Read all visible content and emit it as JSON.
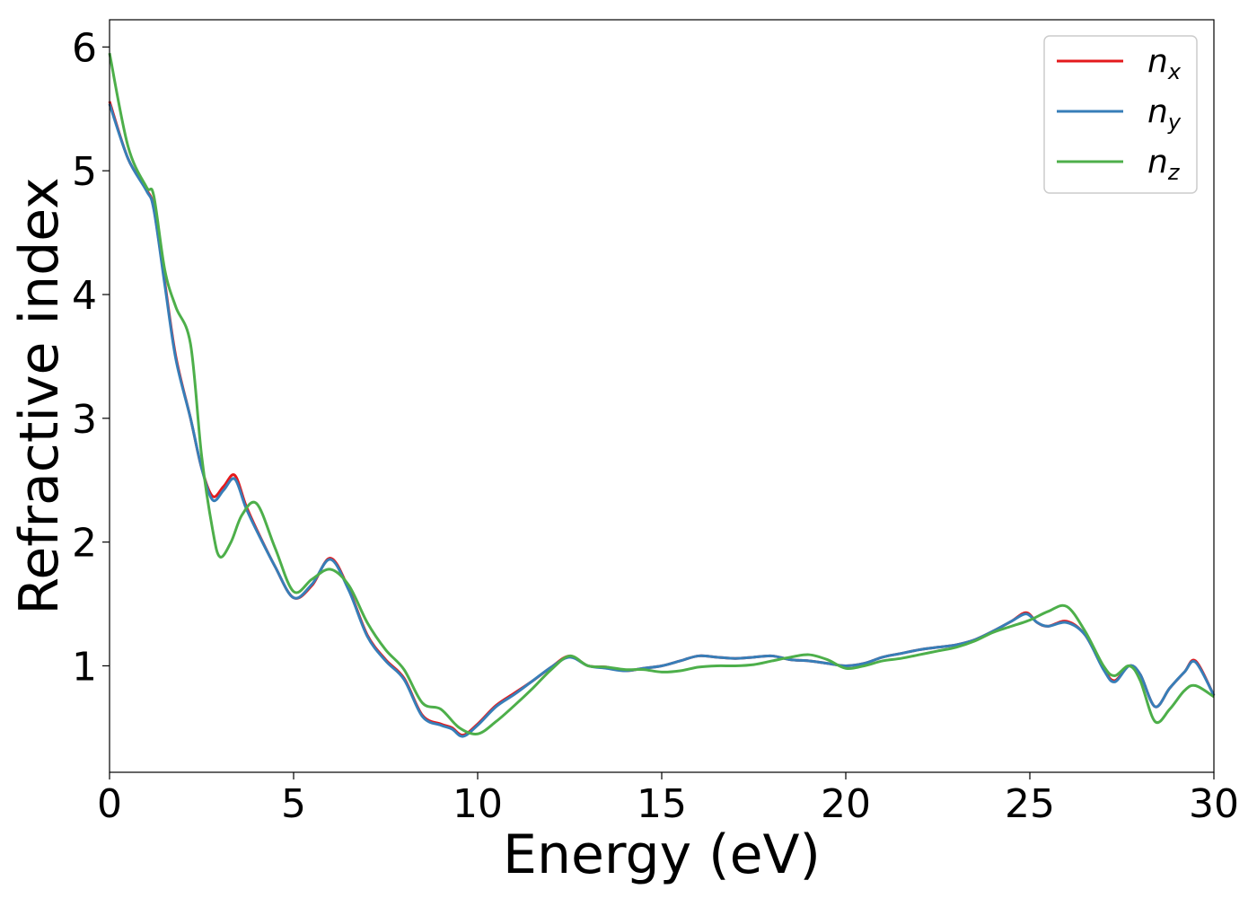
{
  "chart_data": {
    "type": "line",
    "xlabel": "Energy (eV)",
    "ylabel": "Refractive index",
    "xlim": [
      0,
      30
    ],
    "ylim": [
      0.14,
      6.22
    ],
    "xticks": [
      0,
      5,
      10,
      15,
      20,
      25,
      30
    ],
    "yticks": [
      1,
      2,
      3,
      4,
      5,
      6
    ],
    "grid": false,
    "legend_position": "top-right",
    "series": [
      {
        "name": "n",
        "sub": "x",
        "color": "#e41a1c",
        "x": [
          0,
          0.5,
          1,
          1.2,
          1.5,
          1.8,
          2.2,
          2.5,
          2.8,
          3.1,
          3.4,
          3.7,
          4,
          4.5,
          5,
          5.5,
          6,
          6.5,
          7,
          7.5,
          8,
          8.5,
          9,
          9.3,
          9.6,
          10,
          10.5,
          11,
          11.5,
          12,
          12.5,
          13,
          13.5,
          14,
          14.5,
          15,
          15.5,
          16,
          16.5,
          17,
          17.5,
          18,
          18.5,
          19,
          19.5,
          20,
          20.5,
          21,
          21.5,
          22,
          22.5,
          23,
          23.5,
          24,
          24.5,
          24.9,
          25.2,
          25.5,
          26,
          26.5,
          27,
          27.3,
          27.7,
          28,
          28.4,
          28.8,
          29.2,
          29.5,
          30
        ],
        "y": [
          5.56,
          5.1,
          4.85,
          4.7,
          4.1,
          3.5,
          3.0,
          2.6,
          2.37,
          2.45,
          2.54,
          2.3,
          2.1,
          1.8,
          1.55,
          1.65,
          1.87,
          1.62,
          1.25,
          1.05,
          0.9,
          0.6,
          0.53,
          0.5,
          0.44,
          0.53,
          0.68,
          0.78,
          0.88,
          0.99,
          1.08,
          1.0,
          0.99,
          0.96,
          0.98,
          1.0,
          1.04,
          1.08,
          1.07,
          1.06,
          1.07,
          1.08,
          1.05,
          1.04,
          1.02,
          1.0,
          1.02,
          1.07,
          1.1,
          1.13,
          1.15,
          1.17,
          1.21,
          1.28,
          1.36,
          1.43,
          1.35,
          1.32,
          1.36,
          1.25,
          0.98,
          0.88,
          1.0,
          0.93,
          0.67,
          0.82,
          0.95,
          1.04,
          0.76
        ]
      },
      {
        "name": "n",
        "sub": "y",
        "color": "#377eb8",
        "x": [
          0,
          0.5,
          1,
          1.2,
          1.5,
          1.8,
          2.2,
          2.5,
          2.8,
          3.1,
          3.4,
          3.7,
          4,
          4.5,
          5,
          5.5,
          6,
          6.5,
          7,
          7.5,
          8,
          8.5,
          9,
          9.3,
          9.6,
          10,
          10.5,
          11,
          11.5,
          12,
          12.5,
          13,
          13.5,
          14,
          14.5,
          15,
          15.5,
          16,
          16.5,
          17,
          17.5,
          18,
          18.5,
          19,
          19.5,
          20,
          20.5,
          21,
          21.5,
          22,
          22.5,
          23,
          23.5,
          24,
          24.5,
          24.9,
          25.2,
          25.5,
          26,
          26.5,
          27,
          27.3,
          27.7,
          28,
          28.4,
          28.8,
          29.2,
          29.5,
          30
        ],
        "y": [
          5.54,
          5.1,
          4.84,
          4.69,
          4.08,
          3.48,
          3.0,
          2.6,
          2.34,
          2.42,
          2.51,
          2.28,
          2.09,
          1.8,
          1.55,
          1.66,
          1.86,
          1.61,
          1.24,
          1.04,
          0.89,
          0.59,
          0.52,
          0.49,
          0.43,
          0.52,
          0.67,
          0.77,
          0.88,
          0.99,
          1.07,
          1.0,
          0.98,
          0.96,
          0.98,
          1.0,
          1.04,
          1.08,
          1.07,
          1.06,
          1.07,
          1.08,
          1.05,
          1.04,
          1.02,
          1.0,
          1.02,
          1.07,
          1.1,
          1.13,
          1.15,
          1.17,
          1.21,
          1.28,
          1.36,
          1.42,
          1.35,
          1.32,
          1.35,
          1.25,
          0.97,
          0.87,
          1.0,
          0.93,
          0.67,
          0.82,
          0.95,
          1.03,
          0.76
        ]
      },
      {
        "name": "n",
        "sub": "z",
        "color": "#4daf4a",
        "x": [
          0,
          0.5,
          1,
          1.2,
          1.5,
          1.8,
          2.2,
          2.5,
          2.8,
          3.0,
          3.3,
          3.6,
          4.0,
          4.5,
          5.0,
          5.5,
          6.0,
          6.5,
          7.0,
          7.5,
          8.0,
          8.5,
          9.0,
          9.5,
          10.0,
          10.5,
          11.0,
          11.5,
          12.0,
          12.5,
          13.0,
          13.5,
          14.0,
          14.5,
          15.0,
          15.5,
          16.0,
          16.5,
          17.0,
          17.5,
          18.0,
          18.5,
          19.0,
          19.5,
          20.0,
          20.5,
          21.0,
          21.5,
          22.0,
          22.5,
          23.0,
          23.5,
          24.0,
          24.5,
          25.0,
          25.5,
          26.0,
          26.5,
          27.0,
          27.3,
          27.7,
          28.0,
          28.4,
          28.8,
          29.2,
          29.5,
          30.0
        ],
        "y": [
          5.95,
          5.2,
          4.87,
          4.8,
          4.2,
          3.9,
          3.6,
          2.7,
          2.1,
          1.88,
          2.0,
          2.22,
          2.31,
          1.95,
          1.6,
          1.7,
          1.78,
          1.65,
          1.35,
          1.13,
          0.97,
          0.7,
          0.65,
          0.5,
          0.45,
          0.55,
          0.68,
          0.82,
          0.97,
          1.08,
          1.0,
          0.99,
          0.97,
          0.97,
          0.95,
          0.96,
          0.99,
          1.0,
          1.0,
          1.01,
          1.04,
          1.07,
          1.09,
          1.05,
          0.98,
          1.0,
          1.04,
          1.06,
          1.09,
          1.12,
          1.15,
          1.2,
          1.27,
          1.32,
          1.37,
          1.44,
          1.48,
          1.28,
          1.0,
          0.92,
          1.0,
          0.88,
          0.55,
          0.65,
          0.8,
          0.84,
          0.75
        ]
      }
    ]
  }
}
